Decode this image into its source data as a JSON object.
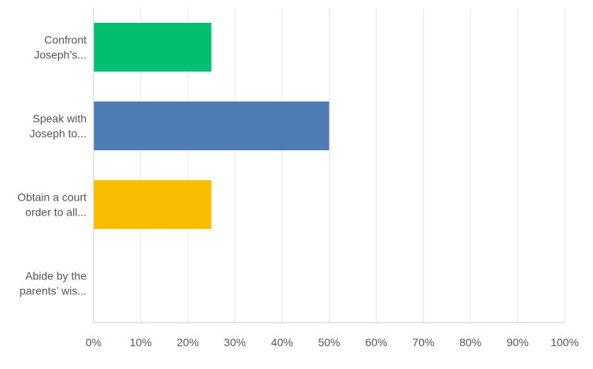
{
  "chart_data": {
    "type": "bar",
    "orientation": "horizontal",
    "categories": [
      [
        "Confront",
        "Joseph’s..."
      ],
      [
        "Speak with",
        "Joseph to..."
      ],
      [
        "Obtain a court",
        "order to all..."
      ],
      [
        "Abide by the",
        "parents’ wis..."
      ]
    ],
    "values": [
      25,
      50,
      25,
      0
    ],
    "colors": [
      "#00bf6f",
      "#507cb6",
      "#f9be00",
      "#6bc8cd"
    ],
    "xlim": [
      0,
      100
    ],
    "xticks": [
      "0%",
      "10%",
      "20%",
      "30%",
      "40%",
      "50%",
      "60%",
      "70%",
      "80%",
      "90%",
      "100%"
    ],
    "grid": true,
    "title": "",
    "xlabel": "",
    "ylabel": ""
  }
}
